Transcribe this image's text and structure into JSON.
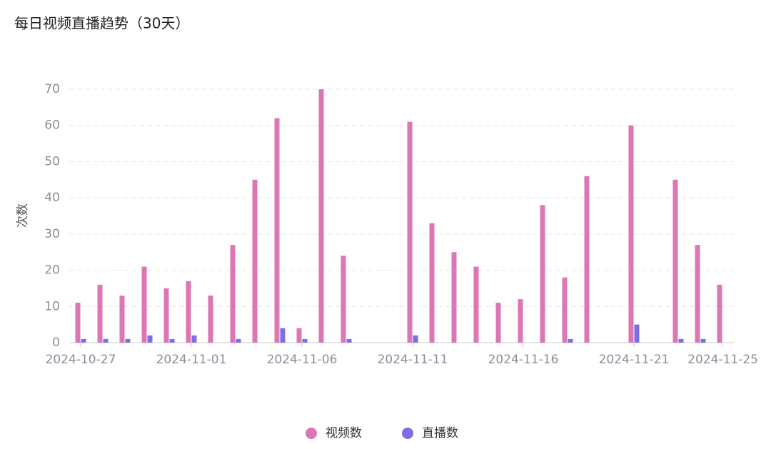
{
  "chart_data": {
    "type": "bar",
    "title": "每日视频直播趋势（30天）",
    "y_label": "次数",
    "categories": [
      "2024-10-27",
      null,
      null,
      null,
      null,
      "2024-11-01",
      null,
      null,
      null,
      null,
      "2024-11-06",
      null,
      null,
      null,
      null,
      "2024-11-11",
      null,
      null,
      null,
      null,
      "2024-11-16",
      null,
      null,
      null,
      null,
      "2024-11-21",
      null,
      null,
      null,
      "2024-11-25"
    ],
    "series": [
      {
        "name": "视频数",
        "color": "#dc76b4",
        "values": [
          11,
          16,
          13,
          21,
          15,
          17,
          13,
          27,
          45,
          62,
          4,
          70,
          24,
          0,
          0,
          61,
          33,
          25,
          21,
          11,
          12,
          38,
          18,
          46,
          0,
          60,
          0,
          45,
          27,
          16
        ]
      },
      {
        "name": "直播数",
        "color": "#7b6fe3",
        "values": [
          1,
          1,
          1,
          2,
          1,
          2,
          0,
          1,
          0,
          4,
          1,
          0,
          1,
          0,
          0,
          2,
          0,
          0,
          0,
          0,
          0,
          0,
          1,
          0,
          0,
          5,
          0,
          1,
          1,
          0
        ]
      }
    ],
    "ylim": [
      0,
      70
    ],
    "yticks": [
      0,
      10,
      20,
      30,
      40,
      50,
      60,
      70
    ],
    "grid": true,
    "legend": "bottom"
  }
}
